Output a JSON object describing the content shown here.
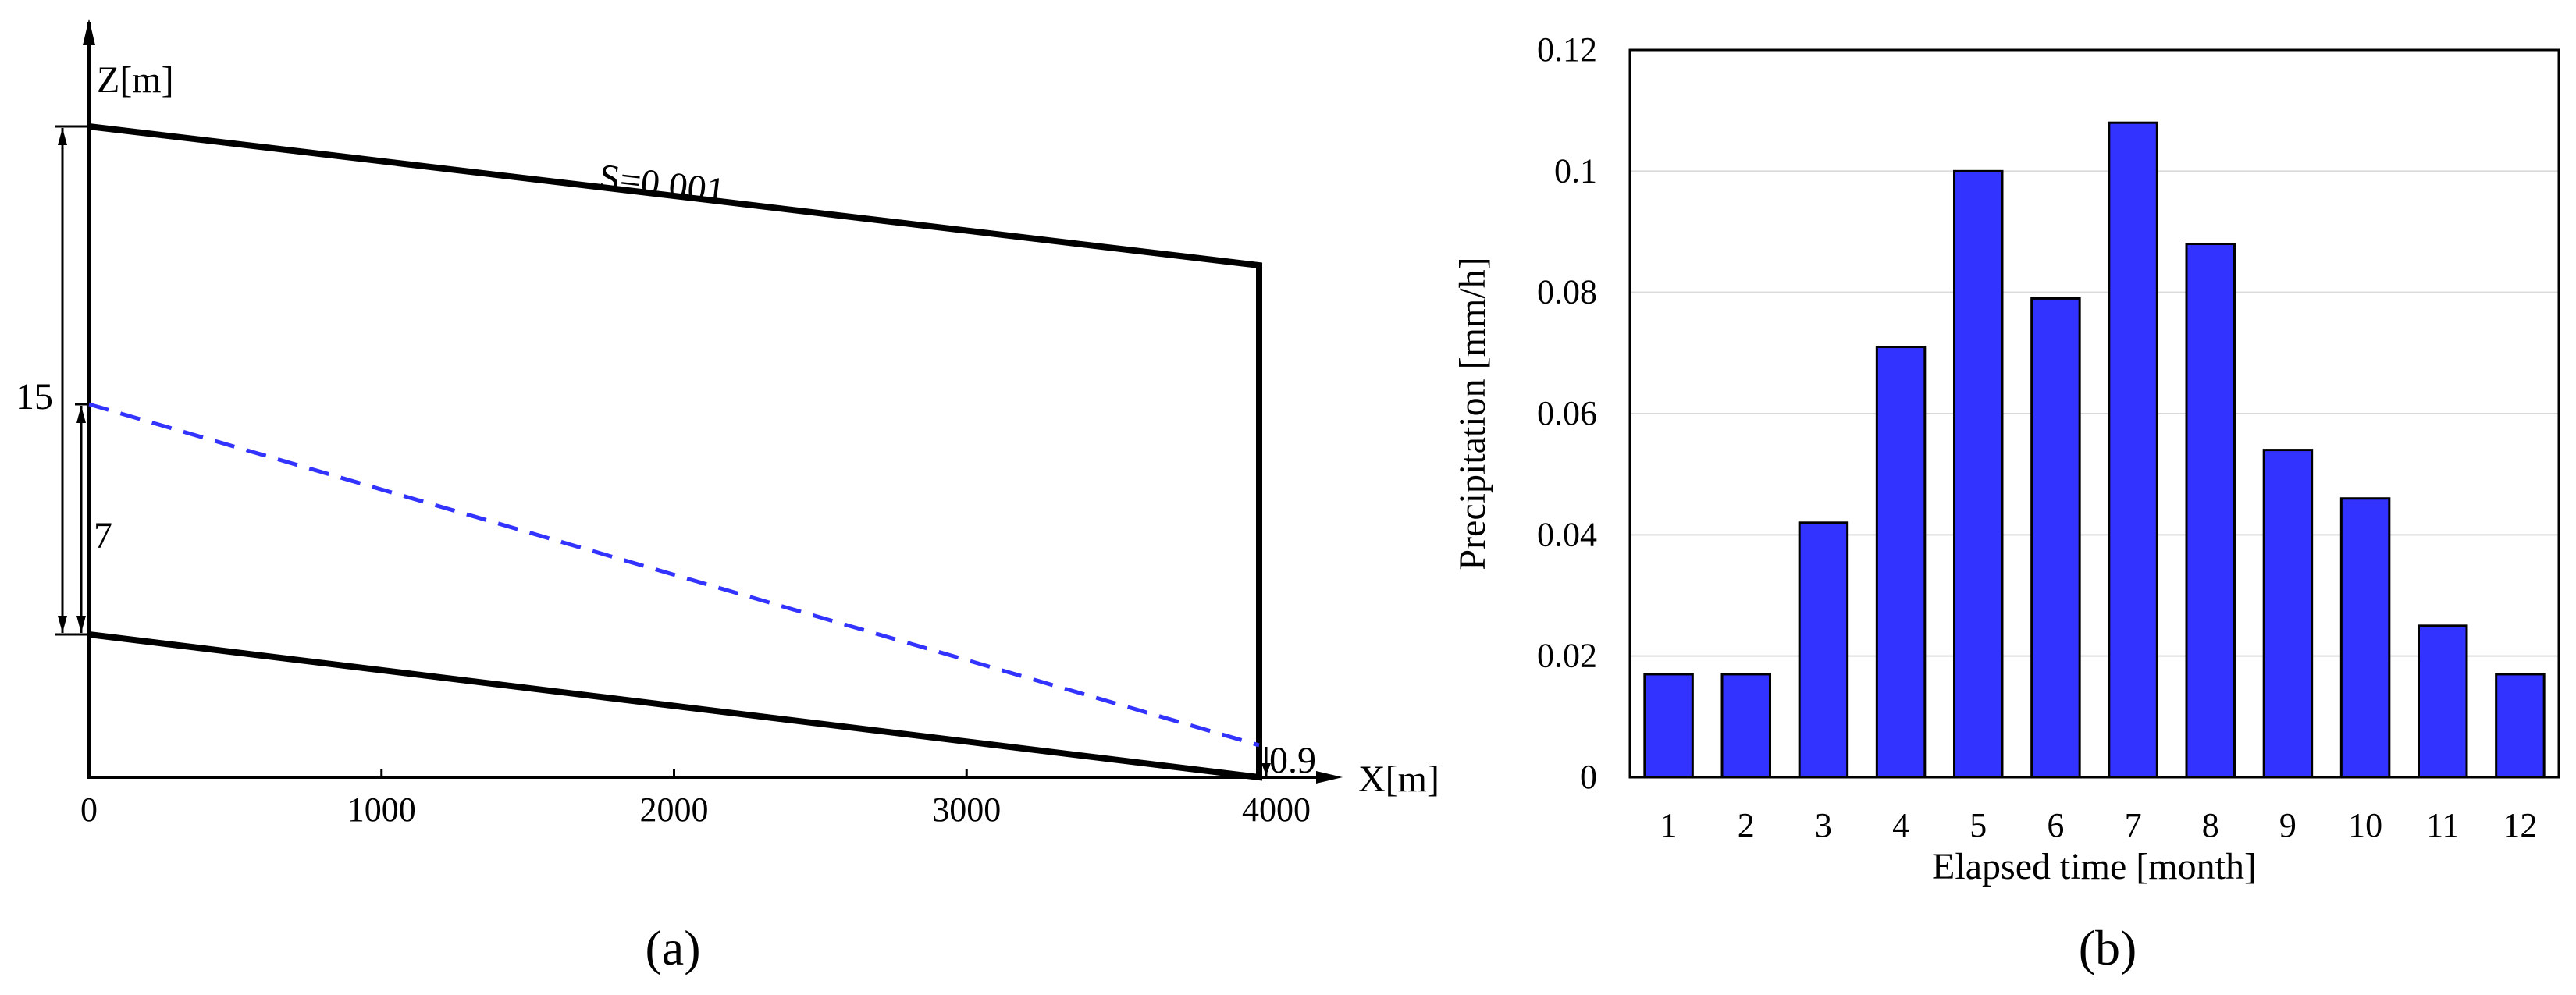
{
  "panel_a": {
    "caption": "(a)",
    "z_axis_label": "Z[m]",
    "x_axis_label": "X[m]",
    "x_ticks": [
      "0",
      "1000",
      "2000",
      "3000",
      "4000"
    ],
    "slope_label": "S=0.001",
    "dim_total": "15",
    "dim_water": "7",
    "dim_outlet": "0.9",
    "colors": {
      "outline": "#000000",
      "water_table": "#3333ff"
    }
  },
  "panel_b": {
    "caption": "(b)"
  },
  "chart_data": [
    {
      "type": "diagram",
      "title": "",
      "xlabel": "X[m]",
      "ylabel": "Z[m]",
      "xlim": [
        0,
        4000
      ],
      "x_ticks": [
        0,
        1000,
        2000,
        3000,
        4000
      ],
      "annotations": [
        "S=0.001",
        "15",
        "7",
        "0.9"
      ],
      "domain_top_surface": [
        [
          0,
          19
        ],
        [
          4000,
          15
        ]
      ],
      "domain_bottom": [
        [
          0,
          4
        ],
        [
          4000,
          0
        ]
      ],
      "water_table": [
        [
          0,
          11
        ],
        [
          4000,
          0.9
        ]
      ],
      "water_table_style": "dashed",
      "grid": false
    },
    {
      "type": "bar",
      "title": "",
      "xlabel": "Elapsed time [month]",
      "ylabel": "Precipitation [mm/h]",
      "categories": [
        "1",
        "2",
        "3",
        "4",
        "5",
        "6",
        "7",
        "8",
        "9",
        "10",
        "11",
        "12"
      ],
      "values": [
        0.017,
        0.017,
        0.042,
        0.071,
        0.1,
        0.079,
        0.108,
        0.088,
        0.054,
        0.046,
        0.025,
        0.017
      ],
      "ylim": [
        0,
        0.12
      ],
      "y_ticks": [
        "0",
        "0.02",
        "0.04",
        "0.06",
        "0.08",
        "0.1",
        "0.12"
      ],
      "bar_color": "#3333ff",
      "grid": true
    }
  ]
}
